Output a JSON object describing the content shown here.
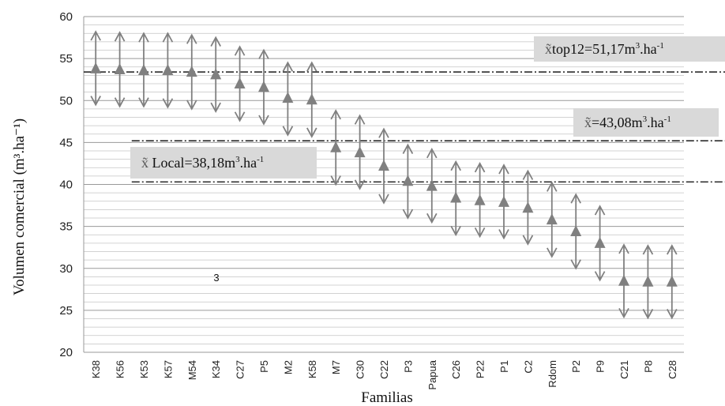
{
  "chart_data": {
    "type": "scatter",
    "xlabel": "Familias",
    "ylabel": "Volumen comercial (m³.ha⁻¹)",
    "ylim": [
      20,
      60
    ],
    "ytick_step": 5,
    "minor_grid_step": 1,
    "grid": true,
    "marker": "triangle-up",
    "error_bars": "double-headed arrows",
    "series_color": "#808080",
    "categories": [
      "K38",
      "K56",
      "K53",
      "K57",
      "M54",
      "K34",
      "C27",
      "P5",
      "M2",
      "K58",
      "M7",
      "C30",
      "C22",
      "P3",
      "Papua",
      "C26",
      "P22",
      "P1",
      "C2",
      "Rdom",
      "P2",
      "P9",
      "C21",
      "P8",
      "C28"
    ],
    "values": [
      53.8,
      53.7,
      53.6,
      53.6,
      53.4,
      53.1,
      52.0,
      51.6,
      50.3,
      50.1,
      44.4,
      43.8,
      42.2,
      40.4,
      39.8,
      38.4,
      38.1,
      37.9,
      37.2,
      35.8,
      34.4,
      33.0,
      28.5,
      28.4,
      28.4
    ],
    "upper": [
      58.2,
      58.1,
      58.0,
      58.0,
      57.8,
      57.5,
      56.4,
      56.0,
      54.5,
      54.5,
      48.8,
      48.2,
      46.6,
      44.7,
      44.2,
      42.7,
      42.5,
      42.3,
      41.6,
      40.2,
      38.8,
      37.4,
      32.8,
      32.7,
      32.7
    ],
    "lower": [
      49.5,
      49.3,
      49.3,
      49.2,
      49.0,
      48.7,
      47.6,
      47.2,
      45.9,
      45.7,
      40.0,
      39.5,
      37.8,
      36.0,
      35.5,
      34.0,
      33.8,
      33.6,
      32.9,
      31.4,
      30.0,
      28.6,
      24.2,
      24.1,
      24.1
    ],
    "reference_lines": [
      {
        "value": 53.4,
        "start_category": "K38",
        "color": "#1a1a1a",
        "style": "dash-dot"
      },
      {
        "value": 45.2,
        "start_category": "K53",
        "color": "#1a1a1a",
        "style": "dash-dot"
      },
      {
        "value": 40.3,
        "start_category": "K53",
        "color": "#1a1a1a",
        "style": "dash-dot"
      }
    ],
    "annotations": [
      {
        "prefix": "top12=51,17m",
        "sup1": "3",
        "mid": ".ha",
        "sup2": "-1"
      },
      {
        "prefix": "=43,08m",
        "sup1": "3",
        "mid": ".ha",
        "sup2": "-1"
      },
      {
        "prefix": " Local=38,18m",
        "sup1": "3",
        "mid": ".ha",
        "sup2": "-1"
      }
    ],
    "annotation_symbol": "x̃",
    "stray_text": "3"
  }
}
